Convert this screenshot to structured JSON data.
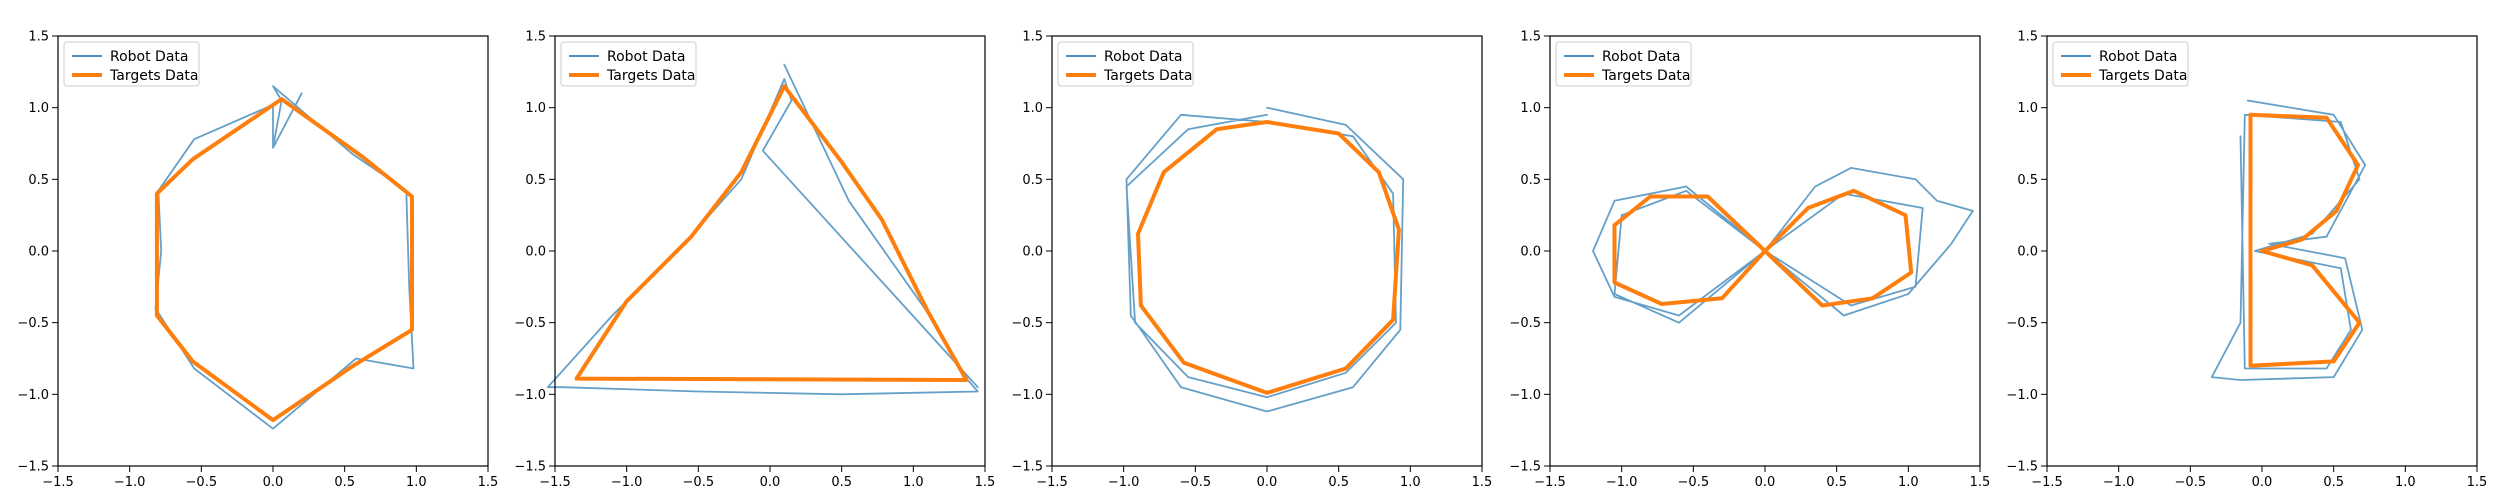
{
  "colors": {
    "robot": "#4a8fc0",
    "target": "#ff7f0e",
    "axes": "#000000",
    "legend_border": "#cccccc"
  },
  "legend": {
    "robot_label": "Robot Data",
    "target_label": "Targets Data"
  },
  "chart_data": [
    {
      "type": "line",
      "xlim": [
        -1.5,
        1.5
      ],
      "ylim": [
        -1.5,
        1.5
      ],
      "xticks": [
        "−1.5",
        "−1.0",
        "−0.5",
        "0.0",
        "0.5",
        "1.0",
        "1.5"
      ],
      "yticks": [
        "1.5",
        "1.0",
        "0.5",
        "0.0",
        "−0.5",
        "−1.0",
        "−1.5"
      ],
      "grid": false,
      "legend_position": "upper-left",
      "series": [
        {
          "name": "Robot Data",
          "x": [
            0.0,
            0.06,
            0.0,
            0.55,
            0.93,
            0.95,
            0.98,
            0.58,
            0.0,
            -0.55,
            -0.82,
            -0.78,
            -0.8,
            -0.55,
            0.0,
            0.0,
            0.2
          ],
          "y": [
            0.72,
            1.05,
            1.15,
            0.68,
            0.42,
            -0.25,
            -0.82,
            -0.75,
            -1.24,
            -0.82,
            -0.4,
            0.0,
            0.42,
            0.78,
            1.02,
            0.72,
            1.1
          ]
        },
        {
          "name": "Targets Data",
          "x": [
            0.06,
            0.62,
            0.97,
            0.97,
            0.56,
            0.0,
            -0.56,
            -0.81,
            -0.81,
            -0.56,
            0.06
          ],
          "y": [
            1.06,
            0.66,
            0.38,
            -0.55,
            -0.8,
            -1.18,
            -0.77,
            -0.45,
            0.4,
            0.64,
            1.06
          ]
        }
      ]
    },
    {
      "type": "line",
      "xlim": [
        -1.5,
        1.5
      ],
      "ylim": [
        -1.5,
        1.5
      ],
      "xticks": [
        "−1.5",
        "−1.0",
        "−0.5",
        "0.0",
        "0.5",
        "1.0",
        "1.5"
      ],
      "yticks": [
        "1.5",
        "1.0",
        "0.5",
        "0.0",
        "−0.5",
        "−1.0",
        "−1.5"
      ],
      "grid": false,
      "legend_position": "upper-left",
      "series": [
        {
          "name": "Robot Data",
          "x": [
            0.1,
            0.55,
            1.15,
            1.38,
            1.45,
            0.5,
            -0.5,
            -1.45,
            -1.55,
            -1.1,
            -0.6,
            -0.2,
            0.1,
            0.15,
            -0.05,
            1.45
          ],
          "y": [
            1.3,
            0.35,
            -0.5,
            -0.9,
            -0.98,
            -1.0,
            -0.98,
            -0.95,
            -0.95,
            -0.45,
            0.05,
            0.5,
            1.2,
            1.05,
            0.7,
            -0.95
          ]
        },
        {
          "name": "Targets Data",
          "x": [
            0.1,
            0.5,
            0.78,
            1.1,
            1.37,
            -1.35,
            -1.0,
            -0.55,
            -0.2,
            0.1
          ],
          "y": [
            1.15,
            0.62,
            0.22,
            -0.42,
            -0.9,
            -0.89,
            -0.35,
            0.1,
            0.55,
            1.15
          ]
        }
      ]
    },
    {
      "type": "line",
      "xlim": [
        -1.5,
        1.5
      ],
      "ylim": [
        -1.5,
        1.5
      ],
      "xticks": [
        "−1.5",
        "−1.0",
        "−0.5",
        "0.0",
        "0.5",
        "1.0",
        "1.5"
      ],
      "yticks": [
        "1.5",
        "1.0",
        "0.5",
        "0.0",
        "−0.5",
        "−1.0",
        "−1.5"
      ],
      "grid": false,
      "legend_position": "upper-left",
      "series": [
        {
          "name": "Robot Data",
          "x": [
            0.0,
            0.55,
            0.95,
            0.93,
            0.6,
            0.0,
            -0.6,
            -0.95,
            -0.98,
            -0.6,
            0.0,
            0.6,
            0.88,
            0.9,
            0.55,
            0.0,
            -0.55,
            -0.92,
            -0.98,
            -0.55,
            0.0
          ],
          "y": [
            1.0,
            0.88,
            0.5,
            -0.55,
            -0.95,
            -1.12,
            -0.95,
            -0.45,
            0.5,
            0.95,
            0.9,
            0.8,
            0.4,
            -0.5,
            -0.85,
            -1.02,
            -0.88,
            -0.5,
            0.45,
            0.85,
            0.95
          ]
        },
        {
          "name": "Targets Data",
          "x": [
            0.0,
            0.5,
            0.78,
            0.92,
            0.88,
            0.55,
            0.0,
            -0.58,
            -0.88,
            -0.9,
            -0.72,
            -0.35,
            0.0
          ],
          "y": [
            0.9,
            0.82,
            0.55,
            0.15,
            -0.48,
            -0.82,
            -0.99,
            -0.78,
            -0.38,
            0.12,
            0.55,
            0.85,
            0.9
          ]
        }
      ]
    },
    {
      "type": "line",
      "xlim": [
        -1.5,
        1.5
      ],
      "ylim": [
        -1.5,
        1.5
      ],
      "xticks": [
        "−1.5",
        "−1.0",
        "−0.5",
        "0.0",
        "0.5",
        "1.0",
        "1.5"
      ],
      "yticks": [
        "1.5",
        "1.0",
        "0.5",
        "0.0",
        "−0.5",
        "−1.0",
        "−1.5"
      ],
      "grid": false,
      "legend_position": "upper-left",
      "series": [
        {
          "name": "Robot Data",
          "x": [
            0.0,
            0.35,
            0.6,
            1.05,
            1.2,
            1.45,
            1.3,
            1.0,
            0.55,
            0.0,
            -0.55,
            -1.05,
            -1.2,
            -1.05,
            -0.6,
            0.0,
            0.55,
            1.1,
            1.05,
            0.6,
            0.0,
            -0.55,
            -1.0,
            -1.05,
            -0.6,
            0.0
          ],
          "y": [
            0.0,
            0.45,
            0.58,
            0.5,
            0.35,
            0.28,
            0.05,
            -0.3,
            -0.45,
            0.0,
            0.45,
            0.35,
            0.0,
            -0.32,
            -0.45,
            0.0,
            0.4,
            0.3,
            -0.25,
            -0.38,
            0.0,
            0.42,
            0.25,
            -0.3,
            -0.5,
            0.0
          ]
        },
        {
          "name": "Targets Data",
          "x": [
            0.0,
            0.3,
            0.62,
            0.98,
            1.02,
            0.75,
            0.4,
            0.0,
            -0.4,
            -0.8,
            -1.05,
            -1.05,
            -0.72,
            -0.3,
            0.0
          ],
          "y": [
            0.0,
            0.3,
            0.42,
            0.25,
            -0.15,
            -0.33,
            -0.38,
            0.0,
            0.38,
            0.38,
            0.18,
            -0.22,
            -0.37,
            -0.33,
            0.0
          ]
        }
      ]
    },
    {
      "type": "line",
      "xlim": [
        -1.5,
        1.5
      ],
      "ylim": [
        -1.5,
        1.5
      ],
      "xticks": [
        "−1.5",
        "−1.0",
        "−0.5",
        "0.0",
        "0.5",
        "1.0",
        "1.5"
      ],
      "yticks": [
        "1.5",
        "1.0",
        "0.5",
        "0.0",
        "−0.5",
        "−1.0",
        "−1.5"
      ],
      "grid": false,
      "legend_position": "upper-left",
      "series": [
        {
          "name": "Robot Data",
          "x": [
            -0.1,
            0.5,
            0.72,
            0.45,
            0.05,
            0.58,
            0.7,
            0.5,
            -0.15,
            -0.35,
            -0.15,
            -0.12,
            0.55,
            0.68,
            0.35,
            -0.05,
            0.55,
            0.62,
            0.45,
            -0.12,
            -0.15
          ],
          "y": [
            1.05,
            0.95,
            0.6,
            0.1,
            0.05,
            -0.05,
            -0.55,
            -0.88,
            -0.9,
            -0.88,
            -0.5,
            0.95,
            0.9,
            0.5,
            0.12,
            0.0,
            -0.12,
            -0.55,
            -0.82,
            -0.82,
            0.8
          ]
        },
        {
          "name": "Targets Data",
          "x": [
            -0.08,
            0.45,
            0.67,
            0.52,
            0.28,
            0.0,
            0.35,
            0.68,
            0.5,
            -0.08,
            -0.08
          ],
          "y": [
            0.95,
            0.93,
            0.6,
            0.28,
            0.08,
            0.0,
            -0.1,
            -0.5,
            -0.77,
            -0.8,
            0.95
          ]
        }
      ]
    }
  ]
}
